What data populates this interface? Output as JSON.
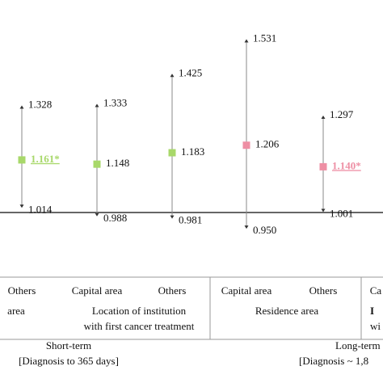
{
  "chart_data": {
    "type": "forest",
    "categories": [
      "Others",
      "Capital area",
      "Others",
      "Capital area",
      "Others",
      "Ca"
    ],
    "values": [
      1.161,
      1.148,
      1.183,
      1.206,
      1.14,
      null
    ],
    "value_labels": [
      "1.161*",
      "1.148",
      "1.183",
      "1.206",
      "1.140*",
      null
    ],
    "lower": [
      1.014,
      0.988,
      0.981,
      0.95,
      1.001,
      null
    ],
    "lower_labels": [
      "1.014",
      "0.988",
      "0.981",
      "0.950",
      "1.001",
      null
    ],
    "upper": [
      1.328,
      1.333,
      1.425,
      1.531,
      1.297,
      null
    ],
    "upper_labels": [
      "1.328",
      "1.333",
      "1.425",
      "1.531",
      "1.297",
      null
    ],
    "colors": [
      "#a8d86a",
      "#a8d86a",
      "#a8d86a",
      "#ee8fa4",
      "#ee8fa4",
      null
    ],
    "highlight": [
      true,
      false,
      false,
      false,
      true,
      null
    ],
    "reference_line": 1,
    "ylim": [
      0.834,
      1.651
    ],
    "group_labels": [
      [
        "area"
      ],
      [
        "Location of institution",
        "with first cancer treatment"
      ],
      [
        "Residence area"
      ],
      [
        "I",
        "wi"
      ]
    ],
    "period_labels": [
      [
        "Short-term",
        "[Diagnosis to 365 days]"
      ],
      [
        "Long-term",
        "[Diagnosis ~ 1,8"
      ]
    ]
  }
}
